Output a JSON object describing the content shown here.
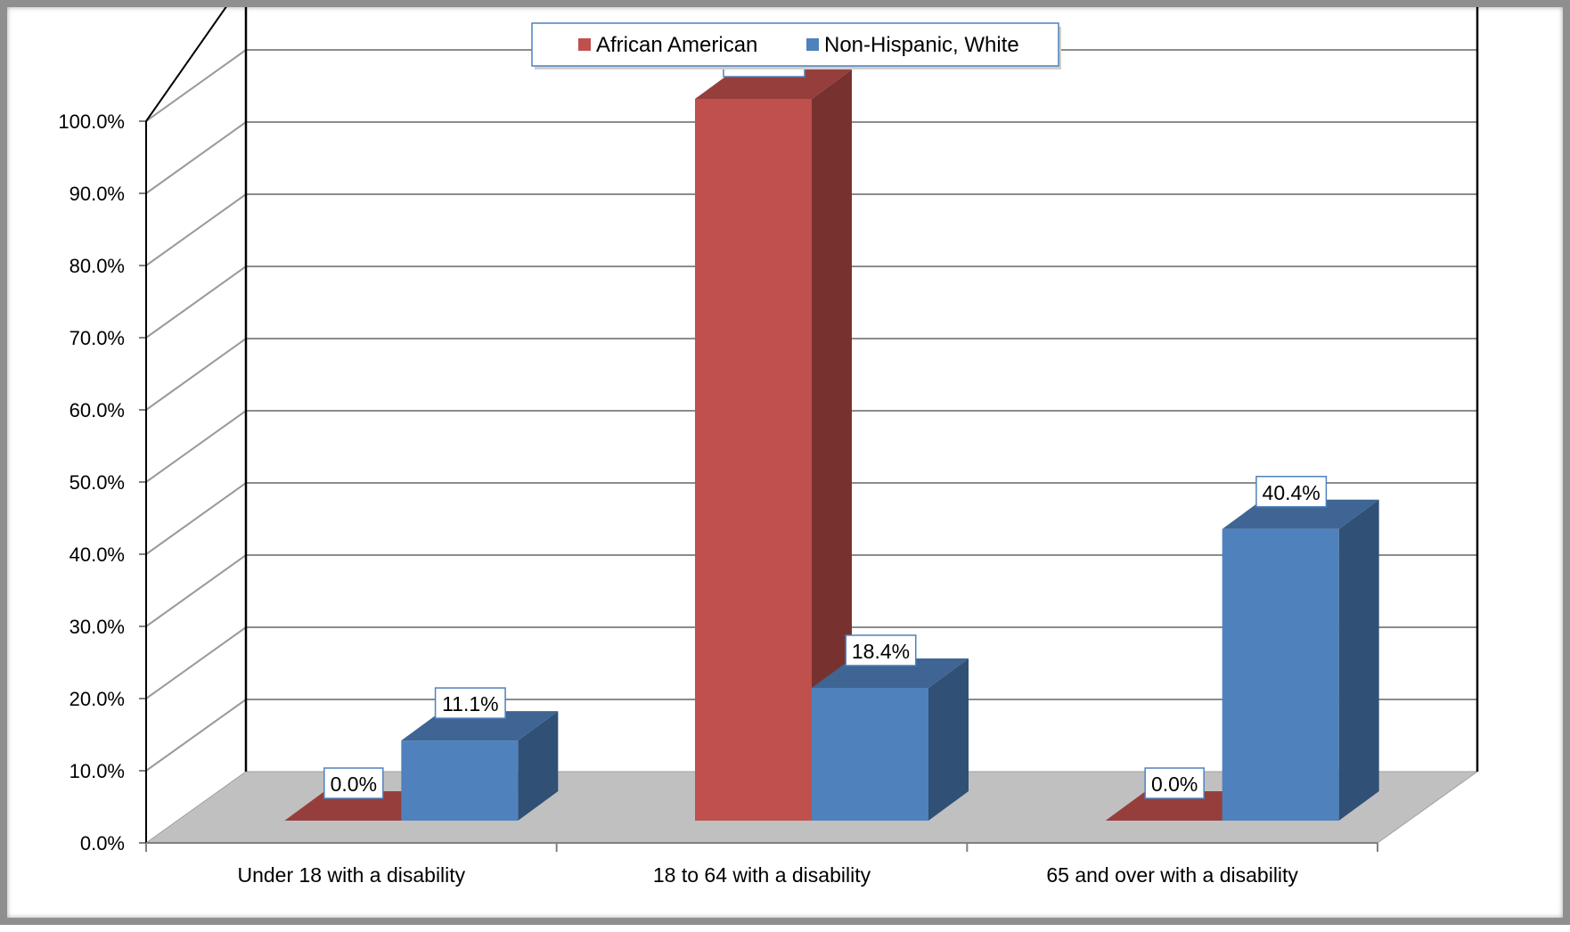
{
  "chart_data": {
    "type": "bar",
    "title": "",
    "xlabel": "",
    "ylabel": "",
    "categories": [
      "Under 18 with a disability",
      "18 to 64 with a disability",
      "65 and over with a disability"
    ],
    "series": [
      {
        "name": "African American",
        "values": [
          0.0,
          100.0,
          0.0
        ],
        "labels": [
          "0.0%",
          "100.0%",
          "0.0%"
        ],
        "color": "#C0504D"
      },
      {
        "name": "Non-Hispanic, White",
        "values": [
          11.1,
          18.4,
          40.4
        ],
        "labels": [
          "11.1%",
          "18.4%",
          "40.4%"
        ],
        "color": "#4F81BD"
      }
    ],
    "ylim": [
      0,
      100
    ],
    "yticks": [
      "0.0%",
      "10.0%",
      "20.0%",
      "30.0%",
      "40.0%",
      "50.0%",
      "60.0%",
      "70.0%",
      "80.0%",
      "90.0%",
      "100.0%"
    ],
    "grid": true,
    "legend": "top-center",
    "style": "3d-clustered-column"
  }
}
